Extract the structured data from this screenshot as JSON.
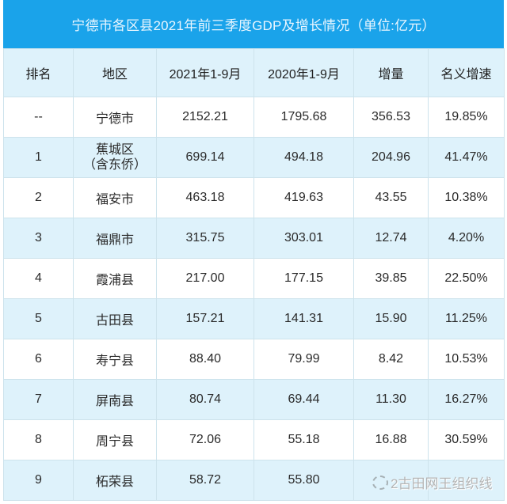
{
  "title": "宁德市各区县2021年前三季度GDP及增长情况（单位:亿元）",
  "colors": {
    "title_bg": "#1aa3ea",
    "header_bg": "#def2fb",
    "alt_row_bg": "#def2fb",
    "border": "#cde3ec"
  },
  "table": {
    "headers": [
      "排名",
      "地区",
      "2021年1-9月",
      "2020年1-9月",
      "增量",
      "名义增速"
    ],
    "rows": [
      {
        "rank": "--",
        "region": "宁德市",
        "region_line2": "",
        "gdp_2021": "2152.21",
        "gdp_2020": "1795.68",
        "increase": "356.53",
        "growth": "19.85%"
      },
      {
        "rank": "1",
        "region": "蕉城区",
        "region_line2": "（含东侨）",
        "gdp_2021": "699.14",
        "gdp_2020": "494.18",
        "increase": "204.96",
        "growth": "41.47%"
      },
      {
        "rank": "2",
        "region": "福安市",
        "region_line2": "",
        "gdp_2021": "463.18",
        "gdp_2020": "419.63",
        "increase": "43.55",
        "growth": "10.38%"
      },
      {
        "rank": "3",
        "region": "福鼎市",
        "region_line2": "",
        "gdp_2021": "315.75",
        "gdp_2020": "303.01",
        "increase": "12.74",
        "growth": "4.20%"
      },
      {
        "rank": "4",
        "region": "霞浦县",
        "region_line2": "",
        "gdp_2021": "217.00",
        "gdp_2020": "177.15",
        "increase": "39.85",
        "growth": "22.50%"
      },
      {
        "rank": "5",
        "region": "古田县",
        "region_line2": "",
        "gdp_2021": "157.21",
        "gdp_2020": "141.31",
        "increase": "15.90",
        "growth": "11.25%"
      },
      {
        "rank": "6",
        "region": "寿宁县",
        "region_line2": "",
        "gdp_2021": "88.40",
        "gdp_2020": "79.99",
        "increase": "8.42",
        "growth": "10.53%"
      },
      {
        "rank": "7",
        "region": "屏南县",
        "region_line2": "",
        "gdp_2021": "80.74",
        "gdp_2020": "69.44",
        "increase": "11.30",
        "growth": "16.27%"
      },
      {
        "rank": "8",
        "region": "周宁县",
        "region_line2": "",
        "gdp_2021": "72.06",
        "gdp_2020": "55.18",
        "increase": "16.88",
        "growth": "30.59%"
      },
      {
        "rank": "9",
        "region": "柘荣县",
        "region_line2": "",
        "gdp_2021": "58.72",
        "gdp_2020": "55.80",
        "increase": "",
        "growth": ""
      }
    ]
  },
  "watermark": {
    "icon": "wechat-icon",
    "text": "2古田网王组织线"
  }
}
